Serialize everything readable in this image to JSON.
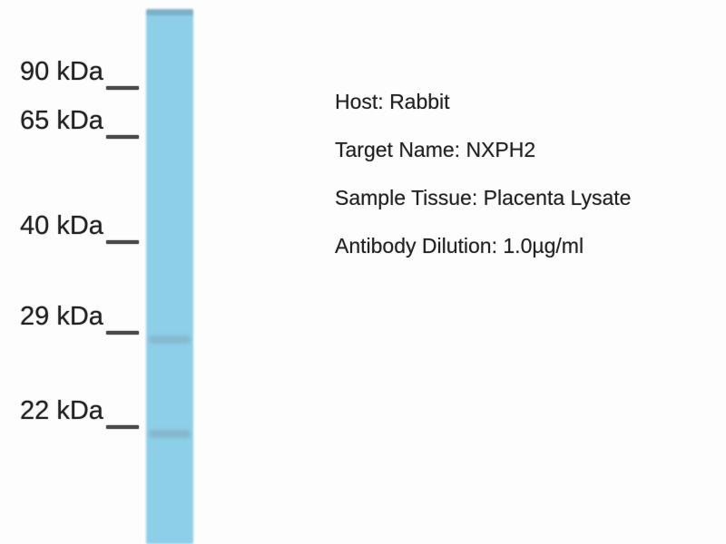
{
  "figure": {
    "kind": "western-blot",
    "markers": [
      "90 kDa",
      "65 kDa",
      "40 kDa",
      "29 kDa",
      "22 kDa"
    ],
    "bands": [
      {
        "name": "band-near-29kda"
      },
      {
        "name": "band-near-22kda"
      }
    ],
    "info": {
      "lines": [
        "Host: Rabbit",
        "Target Name: NXPH2",
        "Sample Tissue: Placenta Lysate",
        "Antibody Dilution: 1.0µg/ml"
      ]
    }
  },
  "colors": {
    "background": "#fdfdfd",
    "lane": "#8dcfe8",
    "lane_top_edge": "rgba(105,140,160,0.45)",
    "band": "#7fa9bc",
    "tick": "#4a4a4a",
    "text": "#222222"
  }
}
